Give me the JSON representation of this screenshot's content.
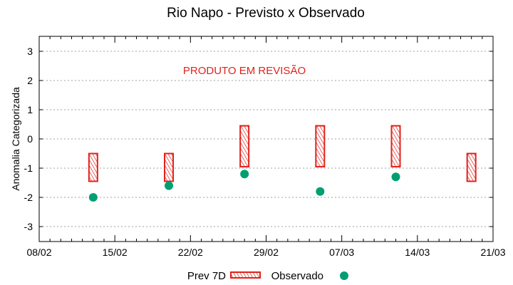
{
  "chart_data": {
    "type": "scatter",
    "title": "Rio Napo - Previsto x Observado",
    "xlabel": "",
    "ylabel": "Anomalia Categorizada",
    "ylim": [
      -3.5,
      3.5
    ],
    "yticks": [
      -3,
      -2,
      -1,
      0,
      1,
      2,
      3
    ],
    "xticks": [
      "08/02",
      "15/02",
      "22/02",
      "29/02",
      "07/03",
      "14/03",
      "21/03"
    ],
    "xrange_days": [
      0,
      42
    ],
    "grid": "horizontal dashed",
    "legend_position": "bottom",
    "annotation": "PRODUTO EM REVISÃO",
    "series": [
      {
        "name": "Prev 7D",
        "kind": "range-bar (hatched)",
        "color": "#e0221b",
        "points": [
          {
            "date": "13/02",
            "day": 5,
            "low": -1.45,
            "high": -0.5
          },
          {
            "date": "20/02",
            "day": 12,
            "low": -1.45,
            "high": -0.5
          },
          {
            "date": "27/02",
            "day": 19,
            "low": -0.95,
            "high": 0.45
          },
          {
            "date": "06/03",
            "day": 26,
            "low": -0.95,
            "high": 0.45
          },
          {
            "date": "13/03",
            "day": 33,
            "low": -0.95,
            "high": 0.45
          },
          {
            "date": "20/03",
            "day": 40,
            "low": -1.45,
            "high": -0.5
          }
        ]
      },
      {
        "name": "Observado",
        "kind": "point",
        "color": "#009e73",
        "points": [
          {
            "date": "13/02",
            "day": 5,
            "value": -2.0
          },
          {
            "date": "20/02",
            "day": 12,
            "value": -1.6
          },
          {
            "date": "27/02",
            "day": 19,
            "value": -1.2
          },
          {
            "date": "06/03",
            "day": 26,
            "value": -1.8
          },
          {
            "date": "13/03",
            "day": 33,
            "value": -1.3
          }
        ]
      }
    ]
  },
  "legend": {
    "prev_label": "Prev 7D",
    "obs_label": "Observado"
  }
}
